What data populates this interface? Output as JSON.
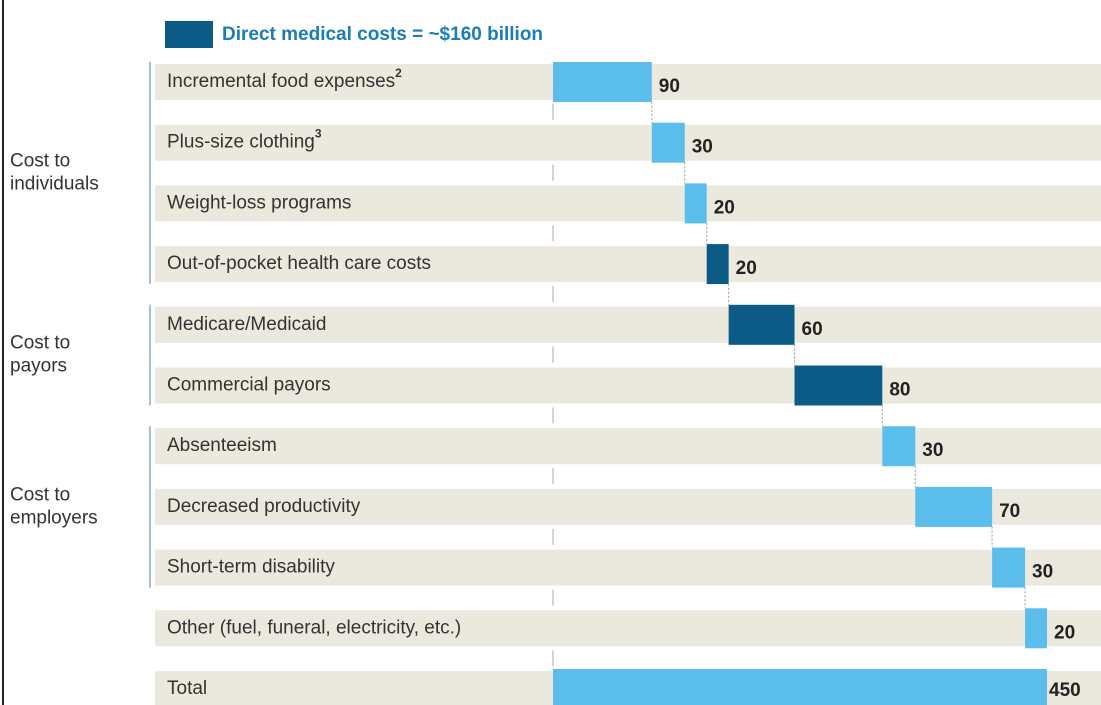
{
  "chart_data": {
    "type": "waterfall",
    "legend": {
      "label": "Direct medical costs = ~$160 billion",
      "color": "#0c5a86"
    },
    "xlim": [
      0,
      450
    ],
    "groups": [
      {
        "label": [
          "Cost to",
          "individuals"
        ],
        "items": [
          {
            "name": "Incremental food expenses",
            "note": "2",
            "value": 90,
            "color": "#5bbdeb"
          },
          {
            "name": "Plus-size clothing",
            "note": "3",
            "value": 30,
            "color": "#5bbdeb"
          },
          {
            "name": "Weight-loss programs",
            "value": 20,
            "color": "#5bbdeb"
          },
          {
            "name": "Out-of-pocket health care costs",
            "value": 20,
            "color": "#0c5a86"
          }
        ]
      },
      {
        "label": [
          "Cost to",
          "payors"
        ],
        "items": [
          {
            "name": "Medicare/Medicaid",
            "value": 60,
            "color": "#0c5a86"
          },
          {
            "name": "Commercial payors",
            "value": 80,
            "color": "#0c5a86"
          }
        ]
      },
      {
        "label": [
          "Cost to",
          "employers"
        ],
        "items": [
          {
            "name": "Absenteeism",
            "value": 30,
            "color": "#5bbdeb"
          },
          {
            "name": "Decreased productivity",
            "value": 70,
            "color": "#5bbdeb"
          },
          {
            "name": "Short-term disability",
            "value": 30,
            "color": "#5bbdeb"
          }
        ]
      },
      {
        "items": [
          {
            "name": "Other (fuel, funeral, electricity, etc.)",
            "value": 20,
            "color": "#5bbdeb"
          }
        ]
      }
    ],
    "total": {
      "name": "Total",
      "value": 450,
      "color": "#5bbdeb"
    }
  }
}
